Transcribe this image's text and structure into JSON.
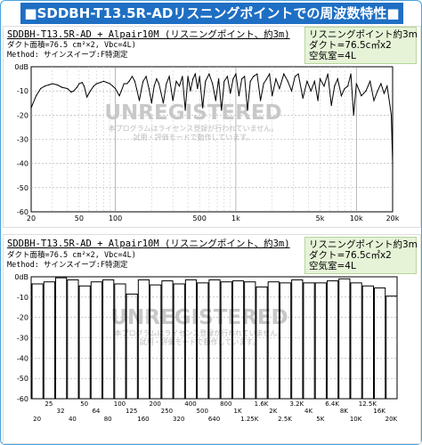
{
  "page_title": "■SDDBH-T13.5R-ADリスニングポイントでの周波数特性■",
  "watermark": {
    "title": "UNREGISTERED",
    "line1": "本プログラムはライセンス登録が行われていません。",
    "line2": "試用・評価モードで動作しています。"
  },
  "colors": {
    "title_bg": "#1e6fc4",
    "legend_bg": "#e6f3d7",
    "frame": "#4aa3df",
    "line": "#000000"
  },
  "chart_data": [
    {
      "type": "line",
      "header": {
        "line1": "SDDBH-T13.5R-AD + Alpair10M (リスニングポイント、約3m)",
        "line2": "ダクト面積=76.5 cm²×2, Vbc=4L)",
        "line3": "Method: サインスイープ:F特測定"
      },
      "legend": [
        "リスニングポイント約3m",
        "ダクト=76.5c㎡x2",
        "空気室=4L"
      ],
      "x_scale": "log",
      "xlim": [
        20,
        20000
      ],
      "ylim": [
        -60,
        0
      ],
      "yticks": [
        0,
        -10,
        -20,
        -30,
        -40,
        -50,
        -60
      ],
      "ytick_labels": [
        "0dB",
        "-10",
        "-20",
        "-30",
        "-40",
        "-50",
        "-60"
      ],
      "xticks": [
        20,
        50,
        100,
        500,
        1000,
        5000,
        10000,
        20000
      ],
      "xtick_labels": [
        "20",
        "50",
        "100",
        "500",
        "1k",
        "5k",
        "10k",
        "20k"
      ],
      "grid": true,
      "series": [
        {
          "x": [
            20,
            22,
            24,
            26,
            28,
            30,
            33,
            36,
            40,
            43,
            45,
            48,
            50,
            53,
            55,
            58,
            62,
            66,
            70,
            75,
            80,
            85,
            90,
            95,
            100,
            108,
            112,
            118,
            125,
            130,
            138,
            145,
            150,
            158,
            165,
            170,
            180,
            190,
            200,
            210,
            220,
            230,
            240,
            250,
            265,
            280,
            300,
            320,
            340,
            360,
            380,
            400,
            420,
            440,
            460,
            480,
            500,
            530,
            560,
            600,
            640,
            680,
            720,
            760,
            800,
            850,
            900,
            950,
            1000,
            1060,
            1120,
            1180,
            1250,
            1320,
            1400,
            1500,
            1600,
            1700,
            1800,
            1900,
            2000,
            2150,
            2300,
            2500,
            2700,
            2900,
            3100,
            3300,
            3600,
            3900,
            4200,
            4500,
            4800,
            5000,
            5400,
            5800,
            6200,
            6600,
            7000,
            7500,
            8000,
            8500,
            9000,
            9500,
            10000,
            11000,
            12000,
            13000,
            14000,
            15000,
            16000,
            17000,
            18000,
            19000,
            19500,
            20000
          ],
          "y": [
            -17,
            -12,
            -9,
            -8,
            -7.5,
            -7,
            -7.5,
            -8.5,
            -9,
            -10.5,
            -10,
            -8.5,
            -7,
            -6.5,
            -8,
            -12.5,
            -10,
            -8,
            -7,
            -6.5,
            -6,
            -6.5,
            -7,
            -8,
            -9,
            -12,
            -10,
            -7,
            -7,
            -6,
            -4,
            -6,
            -9,
            -14,
            -9,
            -6,
            -4,
            -9,
            -15,
            -8,
            -5,
            -7,
            -11,
            -15,
            -7,
            -4,
            -14,
            -6,
            -8,
            -4,
            -18,
            -4,
            -10,
            -5,
            -3,
            -9,
            -4,
            -17,
            -6,
            -3,
            -7,
            -14,
            -5,
            -18,
            -6,
            -4,
            -11,
            -5,
            -3,
            -12,
            -5,
            -4,
            -18,
            -6,
            -4,
            -3,
            -14,
            -7,
            -5,
            -3,
            -12,
            -5,
            -9,
            -3,
            -6,
            -10,
            -4,
            -3,
            -13,
            -6,
            -10,
            -6,
            -14,
            -5,
            -8,
            -3,
            -16,
            -8,
            -5,
            -12,
            -9,
            -8,
            -3,
            -20,
            -7,
            -12,
            -10,
            -6,
            -14,
            -10,
            -7,
            -11,
            -8,
            -16,
            -20,
            -40
          ]
        }
      ]
    },
    {
      "type": "bar",
      "header": {
        "line1": "SDDBH-T13.5R-AD + Alpair10M (リスニングポイント、約3m)",
        "line2": "ダクト面積=76.5 cm²×2, Vbc=4L)",
        "line3": "Method: サインスイープ:F特測定"
      },
      "legend": [
        "リスニングポイント約3m",
        "ダクト=76.5c㎡x2",
        "空気室=4L"
      ],
      "ylim": [
        -60,
        0
      ],
      "yticks": [
        0,
        -10,
        -20,
        -30,
        -40,
        -50,
        -60
      ],
      "ytick_labels": [
        "0dB",
        "-10",
        "-20",
        "-30",
        "-40",
        "-50",
        "-60"
      ],
      "grid": true,
      "categories": [
        "20",
        "25",
        "32",
        "40",
        "50",
        "64",
        "80",
        "100",
        "125",
        "160",
        "200",
        "250",
        "320",
        "400",
        "500",
        "640",
        "800",
        "1K",
        "1.25K",
        "1.6K",
        "2K",
        "2.5K",
        "3.2K",
        "4K",
        "5K",
        "6.4K",
        "8K",
        "10K",
        "12.5K",
        "16K",
        "20K"
      ],
      "label_row_top": [
        "25",
        "50",
        "100",
        "200",
        "400",
        "800",
        "1.6K",
        "3.2K",
        "6.4K",
        "12.5K"
      ],
      "label_row_mid": [
        "32",
        "64",
        "125",
        "250",
        "500",
        "1K",
        "2K",
        "4K",
        "8K",
        "16K"
      ],
      "label_row_bottom": [
        "20",
        "40",
        "80",
        "160",
        "320",
        "640",
        "1.25K",
        "2.5K",
        "5K",
        "10K",
        "20K"
      ],
      "values": [
        -3.5,
        -2.5,
        -0.5,
        -1.5,
        -4.5,
        -2.5,
        -1.5,
        -3.5,
        -8.5,
        -1.5,
        -4,
        -2,
        -3.5,
        -1.5,
        -3,
        -1.5,
        -2.5,
        -2,
        -2.5,
        -5,
        -2.5,
        -3,
        -1.5,
        -3,
        -3,
        -2,
        -1,
        -3,
        -4.5,
        -5.5,
        -9.5
      ]
    }
  ]
}
